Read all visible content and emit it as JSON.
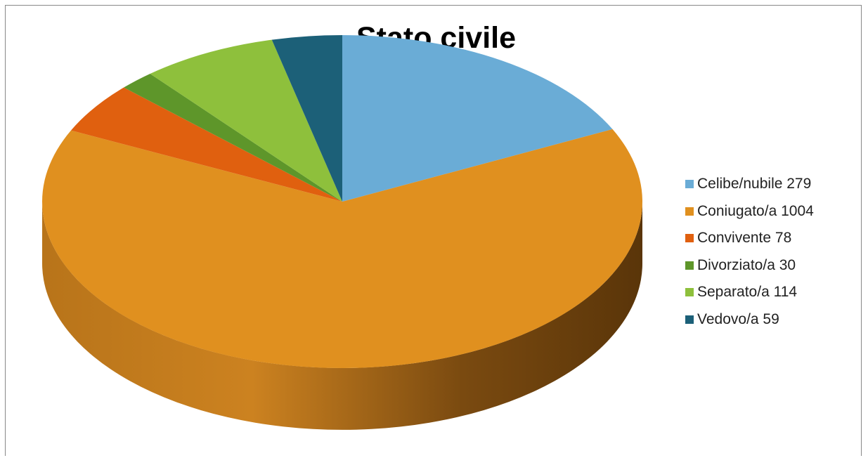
{
  "chart_data": {
    "type": "pie",
    "title": "Stato civile",
    "legend_position": "right",
    "slices": [
      {
        "label": "Celibe/nubile 279",
        "category": "Celibe/nubile",
        "value": 279,
        "color": "#6AACD6"
      },
      {
        "label": "Coniugato/a 1004",
        "category": "Coniugato/a",
        "value": 1004,
        "color": "#E0901F"
      },
      {
        "label": "Convivente 78",
        "category": "Convivente",
        "value": 78,
        "color": "#E0600F"
      },
      {
        "label": "Divorziato/a 30",
        "category": "Divorziato/a",
        "value": 30,
        "color": "#5E962A"
      },
      {
        "label": "Separato/a 114",
        "category": "Separato/a",
        "value": 114,
        "color": "#8EC03C"
      },
      {
        "label": "Vedovo/a 59",
        "category": "Vedovo/a",
        "value": 59,
        "color": "#1C6078"
      }
    ]
  }
}
